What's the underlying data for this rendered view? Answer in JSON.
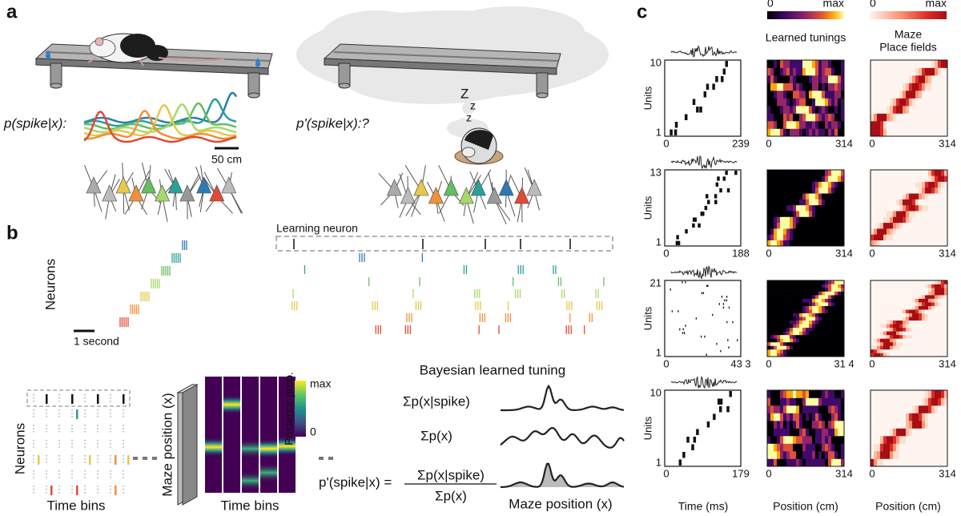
{
  "panel_a": {
    "label": "a",
    "awake_label": "p(spike|x):",
    "scale_bar": "50 cm",
    "sleep_label": "p'(spike|x):?",
    "sleep_z": [
      "Z",
      "z",
      "z"
    ]
  },
  "panel_b": {
    "label": "b",
    "raster_ylabel": "Neurons",
    "scale_bar": "1 second",
    "learning_neuron": "Learning neuron",
    "schematic": {
      "neurons_label": "Neurons",
      "time_bins_left": "Time bins",
      "maze_position_label": "Maze position (x)",
      "time_bins_right": "Time bins",
      "colorbar_title": "Posterior prob.",
      "colorbar_max": "max",
      "colorbar_min": "0",
      "title": "Bayesian learned tuning",
      "sum_spike": "Σp(x|spike)",
      "sum_prior": "Σp(x)",
      "equation_lhs": "p'(spike|x) =",
      "equation_numerator": "Σp(x|spike)",
      "equation_denominator": "Σp(x)",
      "x_label": "Maze position (x)"
    }
  },
  "panel_c": {
    "label": "c",
    "colorbar_tuning": {
      "min": "0",
      "max": "max"
    },
    "colorbar_place": {
      "min": "0",
      "max": "max"
    },
    "header_tunings": "Learned tunings",
    "header_place": [
      "Maze",
      "Place fields"
    ],
    "rows": [
      {
        "units": "Units",
        "ymax": "10",
        "ymin": "1",
        "raster_x": [
          "0",
          "239"
        ],
        "tuning_x": [
          "0",
          "314"
        ],
        "place_x": [
          "0",
          "314"
        ]
      },
      {
        "units": "Units",
        "ymax": "13",
        "ymin": "1",
        "raster_x": [
          "0",
          "188"
        ],
        "tuning_x": [
          "0",
          "314"
        ],
        "place_x": [
          "0",
          "314"
        ]
      },
      {
        "units": "Units",
        "ymax": "21",
        "ymin": "1",
        "raster_x": [
          "0",
          "43 3"
        ],
        "tuning_x": [
          "0",
          "31 4"
        ],
        "place_x": [
          "0",
          "314"
        ]
      },
      {
        "units": "Units",
        "ymax": "10",
        "ymin": "1",
        "raster_x": [
          "0",
          "179"
        ],
        "tuning_x": [
          "0",
          "314"
        ],
        "place_x": [
          "0",
          "314"
        ]
      }
    ],
    "xlabel_time": "Time (ms)",
    "xlabel_tuning": "Position (cm)",
    "xlabel_place": "Position (cm)"
  }
}
